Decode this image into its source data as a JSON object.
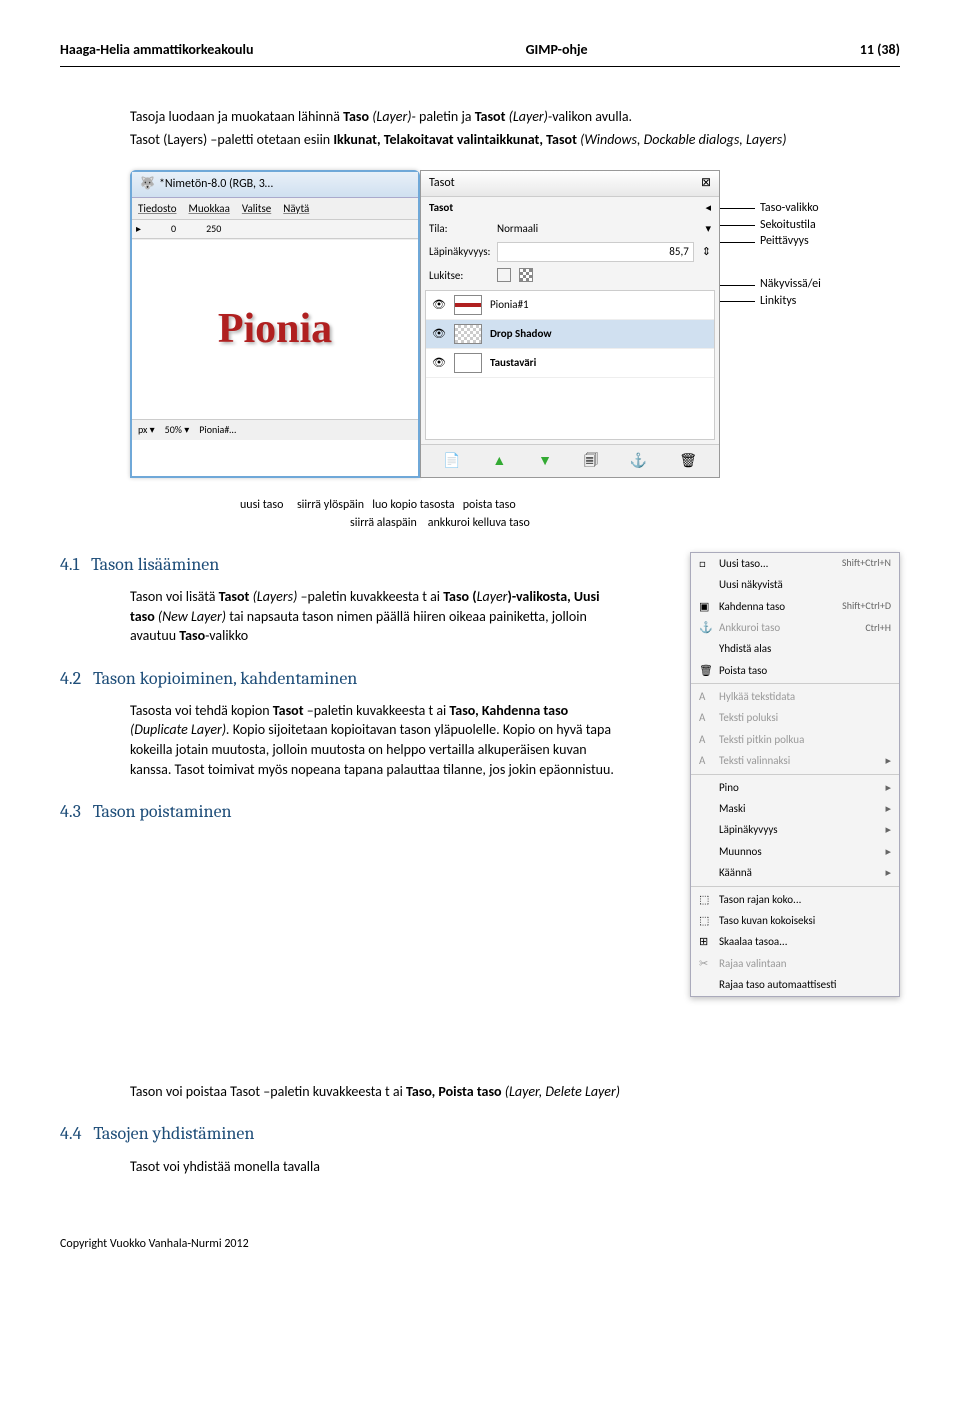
{
  "doc": {
    "header_left": "Haaga-Helia ammattikorkeakoulu",
    "header_center": "GIMP-ohje",
    "header_right": "11 (38)",
    "footer": "Copyright Vuokko Vanhala-Nurmi 2012"
  },
  "intro": {
    "p1_a": "Tasoja luodaan ja muokataan lähinnä ",
    "p1_b": "Taso ",
    "p1_c": "(Layer)- ",
    "p1_d": "paletin ja ",
    "p1_e": "Tasot ",
    "p1_f": "(Layer)-",
    "p1_g": "valikon avulla.",
    "p2_a": "Tasot (Layers) –paletti otetaan esiin ",
    "p2_b": "Ikkunat, Telakoitavat valintaikkunat, Tasot ",
    "p2_c": "(Windows, Dockable dialogs, Layers)"
  },
  "win": {
    "title": "*Nimetön-8.0 (RGB, 3…",
    "menu": [
      "Tiedosto",
      "Muokkaa",
      "Valitse",
      "Näytä"
    ],
    "ruler_left": "0",
    "ruler_mid": "250",
    "logo": "Pionia",
    "status_unit": "px",
    "status_zoom": "50%",
    "status_label": "Pionia#…"
  },
  "panel": {
    "tab": "Tasot",
    "header": "Tasot",
    "tila_label": "Tila:",
    "tila_value": "Normaali",
    "opacity_label": "Läpinäkyvyys:",
    "opacity_value": "85,7",
    "lock_label": "Lukitse:",
    "layers": [
      {
        "name": "Pionia#1"
      },
      {
        "name": "Drop Shadow"
      },
      {
        "name": "Taustaväri"
      }
    ]
  },
  "callouts": {
    "c1": "Taso-valikko",
    "c2": "Sekoitustila",
    "c3": "Peittävyys",
    "c4": "Näkyvissä/ei",
    "c5": "Linkitys"
  },
  "annotations": {
    "line1": "uusi taso     siirrä ylöspäin   luo kopio tasosta   poista taso",
    "line2": "siirrä alaspäin    ankkuroi kelluva taso"
  },
  "sections": {
    "s41_num": "4.1",
    "s41_title": "Tason lisääminen",
    "s41_a": "Tason voi lisätä ",
    "s41_b": "Tasot ",
    "s41_c": "(Layers) –",
    "s41_d": "paletin kuvakkeesta t ai ",
    "s41_e": "Taso (",
    "s41_f": "Layer",
    "s41_g": ")-valikosta, ",
    "s41_h": "Uusi taso ",
    "s41_i": "(New Layer) ",
    "s41_j": "tai napsauta tason nimen päällä hiiren oikeaa painiketta, jolloin avautuu ",
    "s41_k": "Taso",
    "s41_l": "-valikko",
    "s42_num": "4.2",
    "s42_title": "Tason kopioiminen, kahdentaminen",
    "s42_a": "Tasosta voi tehdä kopion  ",
    "s42_b": "Tasot ",
    "s42_c": "–paletin kuvakkeesta t ai ",
    "s42_d": "Taso, Kahdenna  taso ",
    "s42_e": "(Duplicate Layer). ",
    "s42_f": "Kopio sijoitetaan kopioitavan tason yläpuolelle. Kopio on hyvä tapa kokeilla jotain muutosta, jolloin  muutosta on helppo  vertailla  alkuperäisen kuvan kanssa. Tasot toimivat myös nopeana tapana palauttaa tilanne, jos jokin epäonnistuu.",
    "s43_num": "4.3",
    "s43_title": "Tason poistaminen",
    "s43_a": "Tason voi poistaa Tasot –paletin kuvakkeesta t ai ",
    "s43_b": "Taso, Poista taso ",
    "s43_c": "(Layer, Delete Layer)",
    "s44_num": "4.4",
    "s44_title": "Tasojen yhdistäminen",
    "s44_a": "Tasot voi yhdistää monella tavalla"
  },
  "context_menu": {
    "items": [
      {
        "label": "Uusi taso...",
        "shortcut": "Shift+Ctrl+N",
        "icon": "□"
      },
      {
        "label": "Uusi näkyvistä",
        "shortcut": "",
        "icon": ""
      },
      {
        "label": "Kahdenna taso",
        "shortcut": "Shift+Ctrl+D",
        "icon": "▣"
      },
      {
        "label": "Ankkuroi taso",
        "shortcut": "Ctrl+H",
        "icon": "⚓",
        "disabled": true
      },
      {
        "label": "Yhdistä alas",
        "shortcut": "",
        "icon": ""
      },
      {
        "label": "Poista taso",
        "shortcut": "",
        "icon": "🗑"
      },
      {
        "sep": true
      },
      {
        "label": "Hylkää tekstidata",
        "icon": "A",
        "disabled": true
      },
      {
        "label": "Teksti poluksi",
        "icon": "A",
        "disabled": true
      },
      {
        "label": "Teksti pitkin polkua",
        "icon": "A",
        "disabled": true
      },
      {
        "label": "Teksti valinnaksi",
        "icon": "A",
        "arrow": true,
        "disabled": true
      },
      {
        "sep": true
      },
      {
        "label": "Pino",
        "arrow": true
      },
      {
        "label": "Maski",
        "arrow": true
      },
      {
        "label": "Läpinäkyvyys",
        "arrow": true
      },
      {
        "label": "Muunnos",
        "arrow": true
      },
      {
        "label": "Käännä",
        "arrow": true
      },
      {
        "sep": true
      },
      {
        "label": "Tason rajan koko...",
        "icon": "⬚"
      },
      {
        "label": "Taso kuvan kokoiseksi",
        "icon": "⬚"
      },
      {
        "label": "Skaalaa tasoa...",
        "icon": "⊞"
      },
      {
        "label": "Rajaa valintaan",
        "icon": "✂",
        "disabled": true
      },
      {
        "label": "Rajaa taso automaattisesti",
        "icon": ""
      }
    ]
  }
}
